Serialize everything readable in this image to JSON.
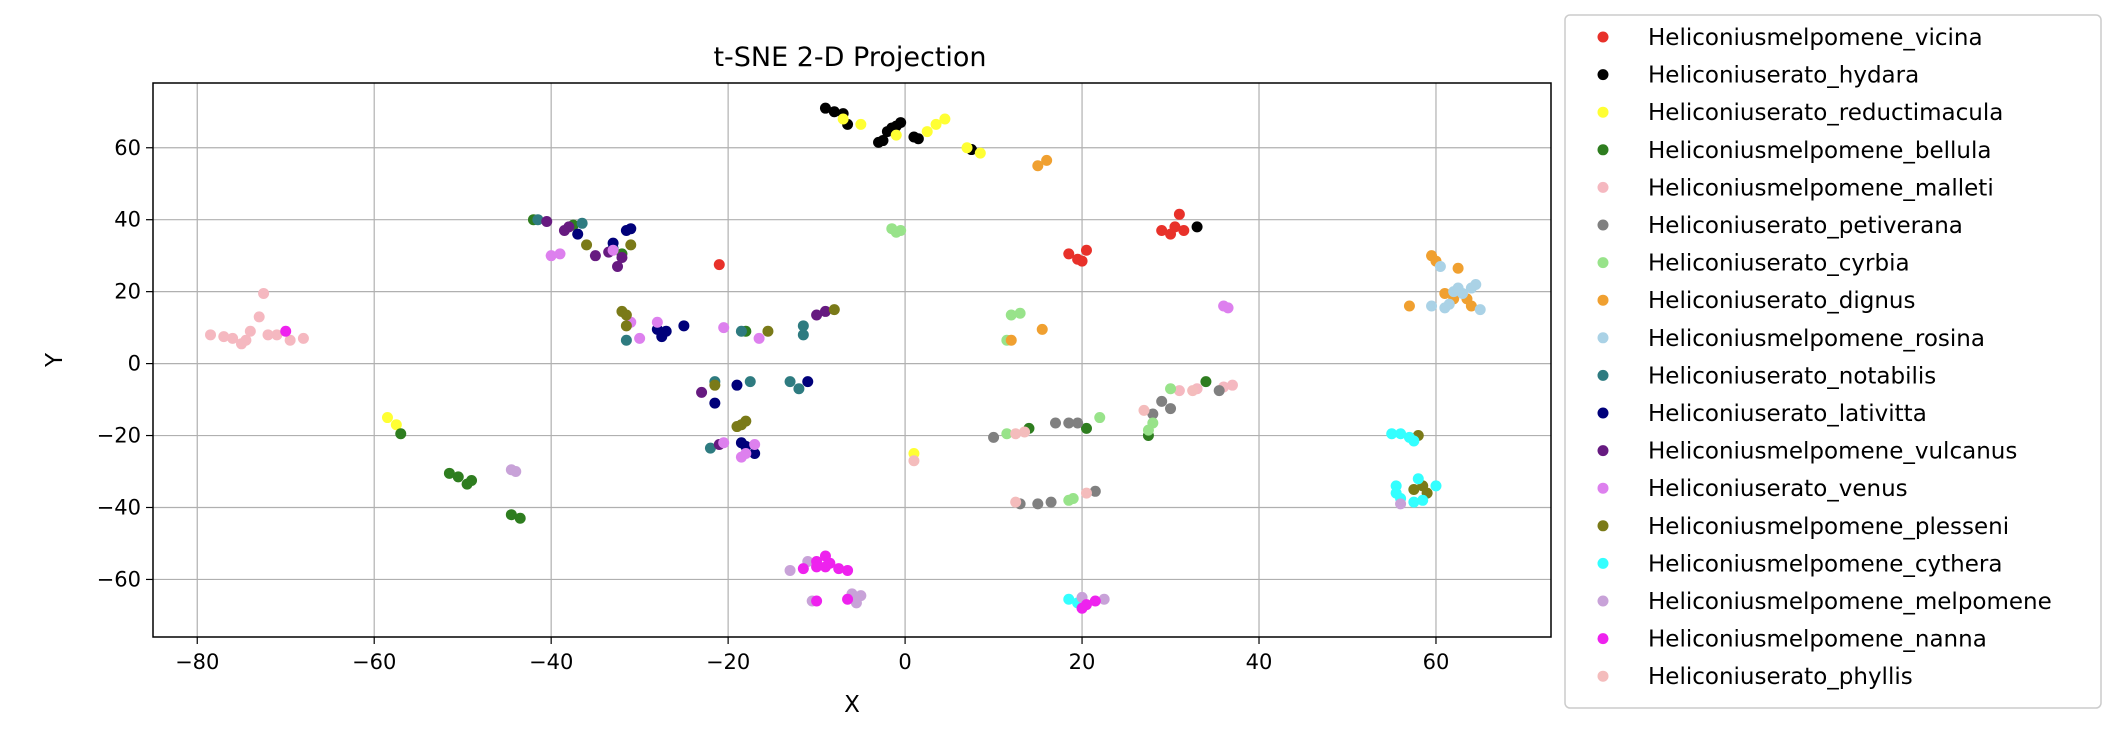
{
  "chart_data": {
    "type": "scatter",
    "title": "t-SNE 2-D Projection",
    "xlabel": "X",
    "ylabel": "Y",
    "xlim": [
      -85,
      73
    ],
    "ylim": [
      -76,
      78
    ],
    "xticks": [
      -80,
      -60,
      -40,
      -20,
      0,
      20,
      40,
      60
    ],
    "yticks": [
      -60,
      -40,
      -20,
      0,
      20,
      40,
      60
    ],
    "grid": true,
    "legend_position": "outside-right",
    "series": [
      {
        "name": "Heliconiusmelpomene_vicina",
        "color": "#e8312a",
        "points": [
          [
            -21,
            27.5
          ],
          [
            18.5,
            30.5
          ],
          [
            19.5,
            29
          ],
          [
            20,
            28.5
          ],
          [
            20.5,
            31.5
          ],
          [
            29,
            37
          ],
          [
            30,
            36
          ],
          [
            30.5,
            38
          ],
          [
            31,
            41.5
          ],
          [
            31.5,
            37
          ]
        ]
      },
      {
        "name": "Heliconiuserato_hydara",
        "color": "#000000",
        "points": [
          [
            -9,
            71
          ],
          [
            -8,
            70
          ],
          [
            -7,
            69.5
          ],
          [
            -6.5,
            66.5
          ],
          [
            -3,
            61.5
          ],
          [
            -2.5,
            62
          ],
          [
            -2,
            64.5
          ],
          [
            -1.5,
            65.5
          ],
          [
            -1,
            66
          ],
          [
            -0.5,
            67
          ],
          [
            1,
            63
          ],
          [
            1.5,
            62.5
          ],
          [
            7.5,
            59.5
          ],
          [
            33,
            38
          ]
        ]
      },
      {
        "name": "Heliconiuserato_reductimacula",
        "color": "#ffff33",
        "points": [
          [
            -7,
            68
          ],
          [
            -5,
            66.5
          ],
          [
            -1,
            63.5
          ],
          [
            2.5,
            64.5
          ],
          [
            3.5,
            66.5
          ],
          [
            4.5,
            68
          ],
          [
            7,
            60
          ],
          [
            8.5,
            58.5
          ],
          [
            -58.5,
            -15
          ],
          [
            -57.5,
            -17
          ],
          [
            1,
            -25
          ]
        ]
      },
      {
        "name": "Heliconiusmelpomene_bellula",
        "color": "#2e7d1f",
        "points": [
          [
            -57,
            -19.5
          ],
          [
            -51.5,
            -30.5
          ],
          [
            -50.5,
            -31.5
          ],
          [
            -49.5,
            -33.5
          ],
          [
            -49,
            -32.5
          ],
          [
            -44.5,
            -42
          ],
          [
            -43.5,
            -43
          ],
          [
            -42,
            40
          ],
          [
            -37.5,
            38.5
          ],
          [
            -32,
            30.5
          ],
          [
            -18,
            9
          ],
          [
            14,
            -18
          ],
          [
            20.5,
            -18
          ],
          [
            27.5,
            -20
          ],
          [
            34,
            -5
          ]
        ]
      },
      {
        "name": "Heliconiusmelpomene_malleti",
        "color": "#f5b8c0",
        "points": [
          [
            -78.5,
            8
          ],
          [
            -77,
            7.5
          ],
          [
            -76,
            7
          ],
          [
            -75,
            5.5
          ],
          [
            -74.5,
            6.5
          ],
          [
            -74,
            9
          ],
          [
            -73,
            13
          ],
          [
            -72.5,
            19.5
          ],
          [
            -72,
            8
          ],
          [
            -71,
            8
          ],
          [
            -69.5,
            6.5
          ],
          [
            -68,
            7
          ],
          [
            31,
            -7.5
          ],
          [
            33,
            -7
          ],
          [
            36,
            -6.5
          ],
          [
            37,
            -6
          ]
        ]
      },
      {
        "name": "Heliconiuserato_petiverana",
        "color": "#808080",
        "points": [
          [
            10,
            -20.5
          ],
          [
            13,
            -39
          ],
          [
            15,
            -39
          ],
          [
            16.5,
            -38.5
          ],
          [
            17,
            -16.5
          ],
          [
            18.5,
            -16.5
          ],
          [
            19.5,
            -16.5
          ],
          [
            21.5,
            -35.5
          ],
          [
            28,
            -14
          ],
          [
            29,
            -10.5
          ],
          [
            30,
            -12.5
          ],
          [
            35.5,
            -7.5
          ]
        ]
      },
      {
        "name": "Heliconiuserato_cyrbia",
        "color": "#98e38a",
        "points": [
          [
            -1.5,
            37.5
          ],
          [
            -1,
            36.5
          ],
          [
            -0.5,
            37
          ],
          [
            11.5,
            6.5
          ],
          [
            11.5,
            -19.5
          ],
          [
            12,
            13.5
          ],
          [
            13,
            14
          ],
          [
            18.5,
            -38
          ],
          [
            19,
            -37.5
          ],
          [
            22,
            -15
          ],
          [
            27.5,
            -18.5
          ],
          [
            28,
            -16.5
          ],
          [
            30,
            -7
          ]
        ]
      },
      {
        "name": "Heliconiuserato_dignus",
        "color": "#f0a030",
        "points": [
          [
            15,
            55
          ],
          [
            16,
            56.5
          ],
          [
            15.5,
            9.5
          ],
          [
            12,
            6.5
          ],
          [
            57,
            16
          ],
          [
            59.5,
            30
          ],
          [
            60,
            28.5
          ],
          [
            61,
            19.5
          ],
          [
            62,
            18
          ],
          [
            62.5,
            26.5
          ],
          [
            63.5,
            18
          ],
          [
            64,
            16
          ]
        ]
      },
      {
        "name": "Heliconiusmelpomene_rosina",
        "color": "#aad2e6",
        "points": [
          [
            59.5,
            16
          ],
          [
            60.5,
            27
          ],
          [
            61,
            15.5
          ],
          [
            61.5,
            16.5
          ],
          [
            62,
            20
          ],
          [
            62.5,
            21
          ],
          [
            63,
            19.5
          ],
          [
            64,
            21
          ],
          [
            64.5,
            22
          ],
          [
            65,
            15
          ]
        ]
      },
      {
        "name": "Heliconiuserato_notabilis",
        "color": "#2e7b80",
        "points": [
          [
            -41.5,
            40
          ],
          [
            -36.5,
            39
          ],
          [
            -33,
            32
          ],
          [
            -31.5,
            6.5
          ],
          [
            -22,
            -23.5
          ],
          [
            -21.5,
            -5
          ],
          [
            -18.5,
            9
          ],
          [
            -17.5,
            -5
          ],
          [
            -13,
            -5
          ],
          [
            -12,
            -7
          ],
          [
            -11.5,
            10.5
          ],
          [
            -11.5,
            8
          ]
        ]
      },
      {
        "name": "Heliconiuserato_lativitta",
        "color": "#00007a",
        "points": [
          [
            -37,
            36
          ],
          [
            -33,
            33.5
          ],
          [
            -31.5,
            37
          ],
          [
            -31,
            37.5
          ],
          [
            -28,
            9.5
          ],
          [
            -27.5,
            7.5
          ],
          [
            -27,
            9
          ],
          [
            -25,
            10.5
          ],
          [
            -21.5,
            -11
          ],
          [
            -19,
            -6
          ],
          [
            -18.5,
            -22
          ],
          [
            -18,
            -23
          ],
          [
            -17,
            -25
          ],
          [
            -11,
            -5
          ]
        ]
      },
      {
        "name": "Heliconiusmelpomene_vulcanus",
        "color": "#661a80",
        "points": [
          [
            -40.5,
            39.5
          ],
          [
            -38.5,
            37
          ],
          [
            -38,
            38
          ],
          [
            -35,
            30
          ],
          [
            -33.5,
            31
          ],
          [
            -32.5,
            27
          ],
          [
            -32,
            29.5
          ],
          [
            -23,
            -8
          ],
          [
            -21,
            -22.5
          ],
          [
            -10,
            13.5
          ],
          [
            -9,
            14.5
          ]
        ]
      },
      {
        "name": "Heliconiuserato_venus",
        "color": "#dd80ee",
        "points": [
          [
            -40,
            30
          ],
          [
            -39,
            30.5
          ],
          [
            -33,
            31.5
          ],
          [
            -31,
            11.5
          ],
          [
            -30,
            7
          ],
          [
            -28,
            11.5
          ],
          [
            -20.5,
            10
          ],
          [
            -20.5,
            -22
          ],
          [
            -18.5,
            -26
          ],
          [
            -18,
            -25
          ],
          [
            -17,
            -22.5
          ],
          [
            -16.5,
            7
          ],
          [
            36,
            16
          ],
          [
            36.5,
            15.5
          ]
        ]
      },
      {
        "name": "Heliconiusmelpomene_plesseni",
        "color": "#7a7a18",
        "points": [
          [
            -36,
            33
          ],
          [
            -31,
            33
          ],
          [
            -32,
            14.5
          ],
          [
            -31.5,
            13.5
          ],
          [
            -31.5,
            10.5
          ],
          [
            -19,
            -17.5
          ],
          [
            -18.5,
            -17
          ],
          [
            -18,
            -16
          ],
          [
            -21.5,
            -6
          ],
          [
            -15.5,
            9
          ],
          [
            -8,
            15
          ],
          [
            57.5,
            -35
          ],
          [
            58,
            -20
          ],
          [
            58.5,
            -34
          ],
          [
            59,
            -36
          ]
        ]
      },
      {
        "name": "Heliconiusmelpomene_cythera",
        "color": "#33ffff",
        "points": [
          [
            55,
            -19.5
          ],
          [
            55.5,
            -34
          ],
          [
            55.5,
            -36
          ],
          [
            56,
            -19.5
          ],
          [
            56,
            -37.5
          ],
          [
            57,
            -20.5
          ],
          [
            57.5,
            -21.5
          ],
          [
            57.5,
            -38.5
          ],
          [
            58,
            -32
          ],
          [
            58.5,
            -38
          ],
          [
            60,
            -34
          ],
          [
            18.5,
            -65.5
          ],
          [
            19.5,
            -66.5
          ]
        ]
      },
      {
        "name": "Heliconiusmelpomene_melpomene",
        "color": "#c8a2d8",
        "points": [
          [
            -44.5,
            -29.5
          ],
          [
            -44,
            -30
          ],
          [
            -13,
            -57.5
          ],
          [
            -11,
            -55
          ],
          [
            -10.5,
            -66
          ],
          [
            -6,
            -64
          ],
          [
            -5.5,
            -66.5
          ],
          [
            -5,
            -64.5
          ],
          [
            20,
            -65
          ],
          [
            22.5,
            -65.5
          ],
          [
            56,
            -39
          ]
        ]
      },
      {
        "name": "Heliconiusmelpomene_nanna",
        "color": "#ee22ee",
        "points": [
          [
            -70,
            9
          ],
          [
            -11.5,
            -57
          ],
          [
            -10,
            -55
          ],
          [
            -10,
            -56.5
          ],
          [
            -9,
            -53.5
          ],
          [
            -9,
            -56.5
          ],
          [
            -8.5,
            -55.5
          ],
          [
            -7.5,
            -57
          ],
          [
            -6.5,
            -65.5
          ],
          [
            -6.5,
            -57.5
          ],
          [
            -10,
            -66
          ],
          [
            20,
            -68
          ],
          [
            20.5,
            -67
          ],
          [
            21.5,
            -66
          ]
        ]
      },
      {
        "name": "Heliconiuserato_phyllis",
        "color": "#f4bcbc",
        "points": [
          [
            1,
            -27
          ],
          [
            12.5,
            -38.5
          ],
          [
            12.5,
            -19.5
          ],
          [
            13.5,
            -19
          ],
          [
            20.5,
            -36
          ],
          [
            27,
            -13
          ],
          [
            32.5,
            -7.5
          ]
        ]
      }
    ]
  }
}
